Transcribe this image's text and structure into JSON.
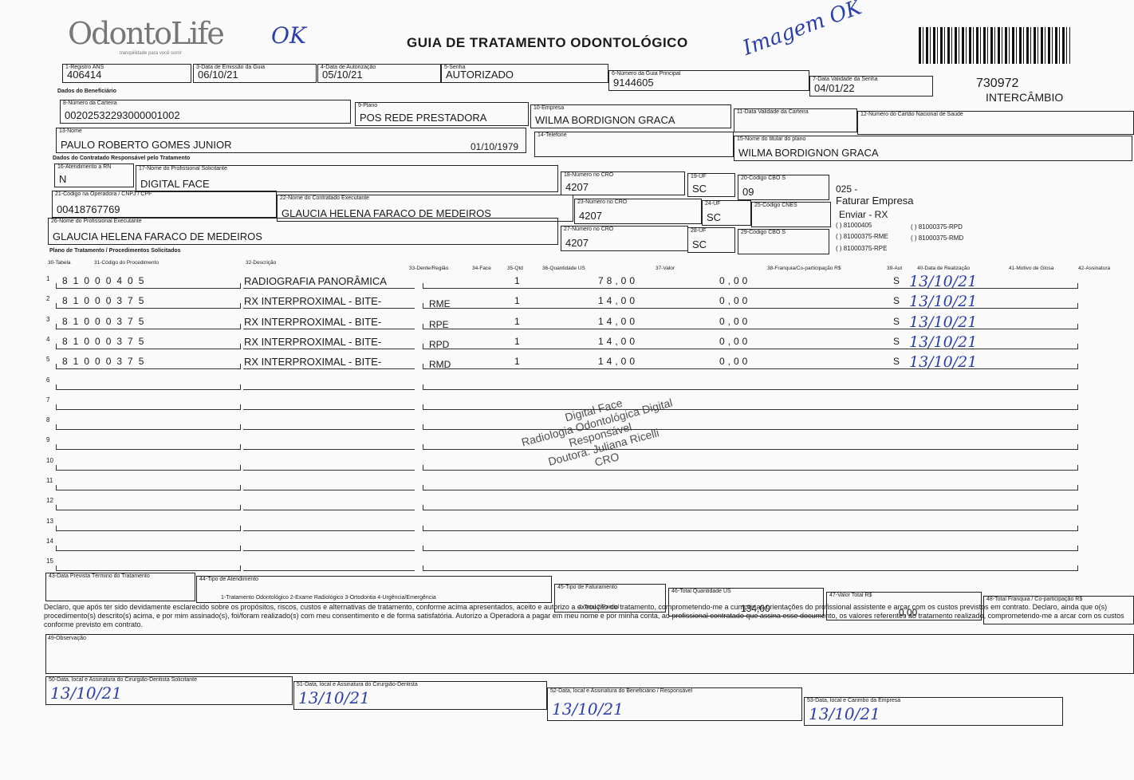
{
  "header": {
    "logo": "OdontoLife",
    "logo_tagline": "tranquilidade para você sorrir",
    "title": "GUIA DE TRATAMENTO ODONTOLÓGICO",
    "code": "730972",
    "type": "INTERCÂMBIO"
  },
  "sections": [
    "Dados do Beneficiário",
    "Dados do Contratado Responsável pelo Tratamento",
    "Plano de Tratamento / Procedimentos Solicitados"
  ],
  "fields": [
    {
      "label": "1-Registro ANS",
      "value": "406414"
    },
    {
      "label": "3-Data de Emissão da Guia",
      "value": "06/10/21"
    },
    {
      "label": "4-Data de Autorização",
      "value": "05/10/21"
    },
    {
      "label": "5-Senha",
      "value": "AUTORIZADO"
    },
    {
      "label": "6-Número da Guia Principal",
      "value": "9144605"
    },
    {
      "label": "7-Data Validade da Senha",
      "value": "04/01/22"
    },
    {
      "label": "8-Número da Carteira",
      "value": "00202532293000001002"
    },
    {
      "label": "9-Plano",
      "value": "POS REDE PRESTADORA"
    },
    {
      "label": "10-Empresa",
      "value": "WILMA BORDIGNON GRACA"
    },
    {
      "label": "11-Data Validade da Carteira"
    },
    {
      "label": "12-Número do Cartão Nacional de Saúde"
    },
    {
      "label": "13-Nome",
      "value": "PAULO ROBERTO GOMES JUNIOR"
    },
    {
      "value": "01/10/1979"
    },
    {
      "label": "14-Telefone"
    },
    {
      "label": "15-Nome do titular do plano",
      "value": "WILMA BORDIGNON GRACA"
    },
    {
      "label": "16-Atendimento a RN",
      "value": "N"
    },
    {
      "label": "17-Nome do Profissional Solicitante",
      "value": "DIGITAL FACE"
    },
    {
      "label": "18-Número no CRO",
      "value": "4207"
    },
    {
      "label": "19-UF",
      "value": "SC"
    },
    {
      "label": "20-Código CBO S",
      "value": "09"
    },
    {
      "label": "21-Código na Operadora / CNPJ / CPF",
      "value": "00418767769"
    },
    {
      "label": "22-Nome do Contratado Executante",
      "value": "GLAUCIA HELENA FARACO DE MEDEIROS"
    },
    {
      "label": "23-Número no CRO",
      "value": "4207"
    },
    {
      "label": "24-UF",
      "value": "SC"
    },
    {
      "label": "25-Código CNES"
    },
    {
      "label": "26-Nome do Profissional Executante",
      "value": "GLAUCIA HELENA FARACO DE MEDEIROS"
    },
    {
      "label": "27-Número no CRO",
      "value": "4207"
    },
    {
      "label": "28-UF",
      "value": "SC"
    },
    {
      "label": "29-Código CBO S"
    }
  ],
  "notes": [
    "025 -",
    "Faturar Empresa",
    "Enviar - RX",
    "( ) 81000405",
    "( ) 81000375-RPD",
    "( ) 81000375-RME",
    "( ) 81000375-RMD",
    "( ) 81000375-RPE"
  ],
  "table": {
    "headers": [
      "30-Tabela",
      "31-Código do Procedimento",
      "32-Descrição",
      "33-Dente/Região",
      "34-Face",
      "35-Qtd",
      "36-Quantidade US",
      "37-Valor",
      "38-Franquia/Co-participação R$",
      "39-Aut",
      "40-Data de Realização",
      "41-Motivo de Glosa",
      "42-Assinatura"
    ],
    "rows": [
      {
        "num": "1",
        "code": "81000405",
        "description": "RADIOGRAFIA PANORÂMICA",
        "qtd": "1",
        "us": "78,00",
        "valor": "0,00",
        "aut": "S",
        "date": "13/10/21"
      },
      {
        "num": "2",
        "code": "81000375",
        "description": "RX INTERPROXIMAL - BITE-",
        "region": "RME",
        "qtd": "1",
        "us": "14,00",
        "valor": "0,00",
        "aut": "S",
        "date": "13/10/21"
      },
      {
        "num": "3",
        "code": "81000375",
        "description": "RX INTERPROXIMAL - BITE-",
        "region": "RPE",
        "qtd": "1",
        "us": "14,00",
        "valor": "0,00",
        "aut": "S",
        "date": "13/10/21"
      },
      {
        "num": "4",
        "code": "81000375",
        "description": "RX INTERPROXIMAL - BITE-",
        "region": "RPD",
        "qtd": "1",
        "us": "14,00",
        "valor": "0,00",
        "aut": "S",
        "date": "13/10/21"
      },
      {
        "num": "5",
        "code": "81000375",
        "description": "RX INTERPROXIMAL - BITE-",
        "region": "RMD",
        "qtd": "1",
        "us": "14,00",
        "valor": "0,00",
        "aut": "S",
        "date": "13/10/21"
      },
      {
        "num": "6"
      },
      {
        "num": "7"
      },
      {
        "num": "8"
      },
      {
        "num": "9"
      },
      {
        "num": "10"
      },
      {
        "num": "11"
      },
      {
        "num": "12"
      },
      {
        "num": "13"
      },
      {
        "num": "14"
      },
      {
        "num": "15"
      }
    ]
  },
  "footer": [
    {
      "label": "43-Data Prevista Término do Tratamento"
    },
    {
      "label": "44-Tipo de Atendimento",
      "value": "1-Tratamento Odontológico 2-Exame Radiológico 3-Ortodontia 4-Urgência/Emergência"
    },
    {
      "label": "45-Tipo de Faturamento",
      "value": "1-Total 2-Parcial"
    },
    {
      "label": "46-Total Quantidade US",
      "value": "134,00"
    },
    {
      "label": "47-Valor Total R$",
      "value": "0,00"
    },
    {
      "label": "48-Total Franquia / Co-participação R$"
    }
  ],
  "declaration": "Declaro, que após ter sido devidamente esclarecido sobre os propósitos, riscos, custos e alternativas de tratamento, conforme acima apresentados, aceito e autorizo a execução do tratamento, comprometendo-me a cumprir as orientações do profissional assistente e arcar com os custos previstos em contrato. Declaro, ainda que o(s) procedimento(s) descrito(s) acima, e por mim assinado(s), foi/foram realizado(s) com meu consentimento e de forma satisfatória. Autorizo a Operadora a pagar em meu nome e por minha conta, ao profissional contratado que assina esse documento, os valores referentes ao tratamento realizado, comprometendo-me a arcar com os custos conforme previsto em contrato.",
  "observation": "49-Observação",
  "signatures": [
    {
      "label": "50-Data, local e Assinatura do Cirurgião-Dentista Solicitante",
      "value": "13/10/21"
    },
    {
      "label": "51-Data, local e Assinatura do Cirurgião-Dentista",
      "value": "13/10/21"
    },
    {
      "label": "52-Data, local e Assinatura do Beneficiário / Responsável",
      "value": "13/10/21"
    },
    {
      "label": "53-Data, local e Carimbo da Empresa",
      "value": "13/10/21"
    }
  ],
  "handwriting": [
    "OK",
    "Imagem OK"
  ],
  "stamp": [
    "Digital Face",
    "Radiologia Odontológica Digital",
    "Responsável",
    "Doutora: Juliana Ricelli",
    "CRO"
  ]
}
